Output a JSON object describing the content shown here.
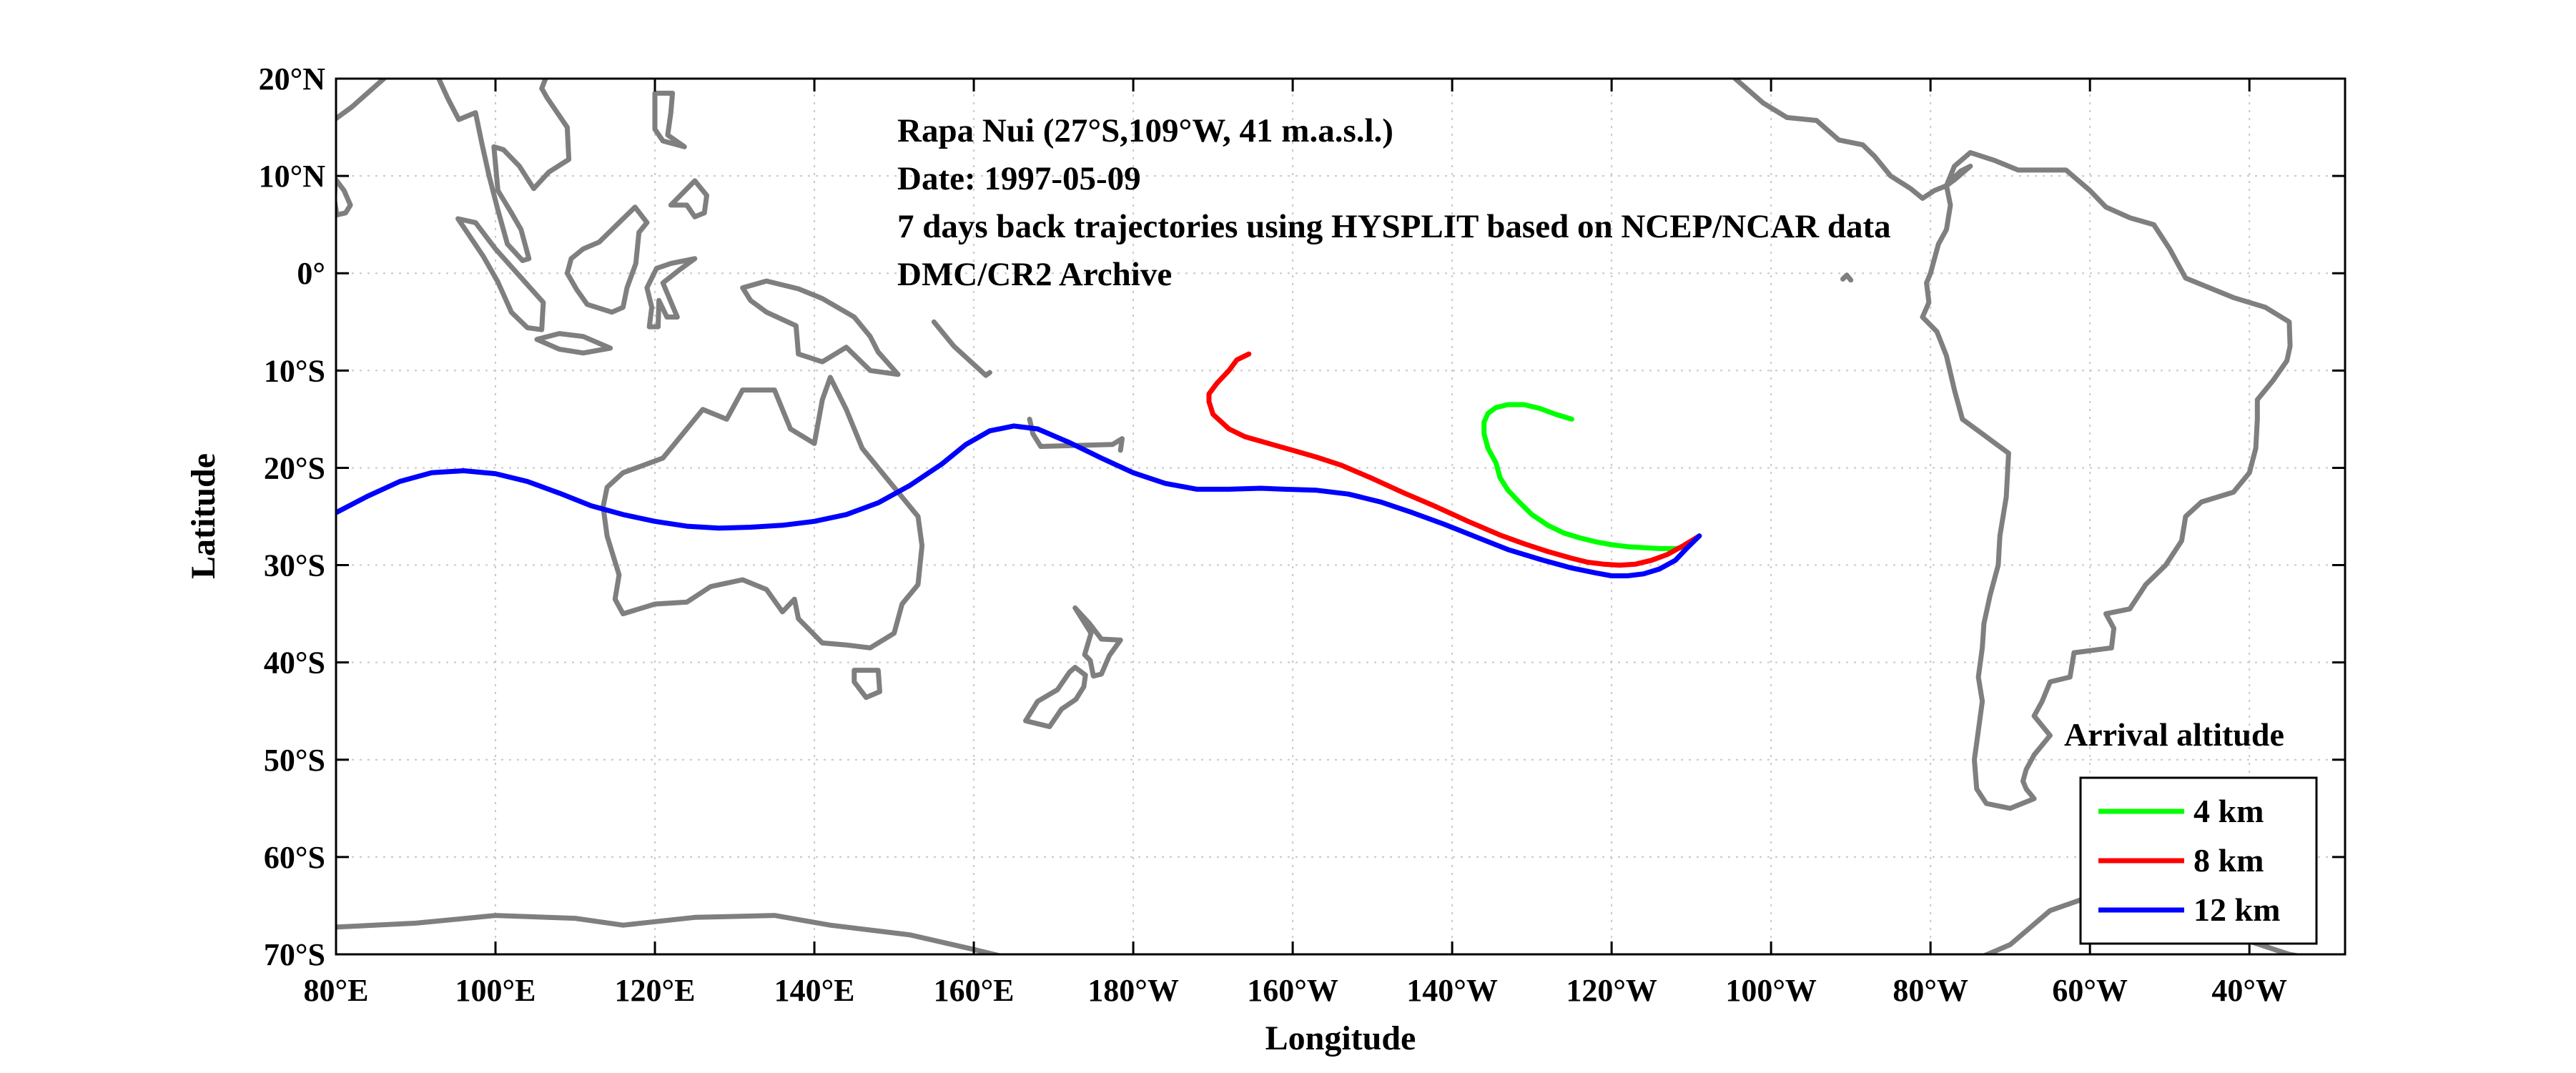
{
  "chart_data": {
    "type": "line",
    "title_lines": [
      "Rapa Nui (27°S,109°W, 41 m.a.s.l.)",
      "Date: 1997-05-09",
      "7 days back trajectories using HYSPLIT based on NCEP/NCAR data",
      "DMC/CR2 Archive"
    ],
    "xlabel": "Longitude",
    "ylabel": "Latitude",
    "xlim": [
      80,
      332
    ],
    "ylim": [
      -70,
      20
    ],
    "grid": true,
    "x_ticks": [
      {
        "value": 80,
        "label": "80°E"
      },
      {
        "value": 100,
        "label": "100°E"
      },
      {
        "value": 120,
        "label": "120°E"
      },
      {
        "value": 140,
        "label": "140°E"
      },
      {
        "value": 160,
        "label": "160°E"
      },
      {
        "value": 180,
        "label": "180°W"
      },
      {
        "value": 200,
        "label": "160°W"
      },
      {
        "value": 220,
        "label": "140°W"
      },
      {
        "value": 240,
        "label": "120°W"
      },
      {
        "value": 260,
        "label": "100°W"
      },
      {
        "value": 280,
        "label": "80°W"
      },
      {
        "value": 300,
        "label": "60°W"
      },
      {
        "value": 320,
        "label": "40°W"
      }
    ],
    "y_ticks": [
      {
        "value": 20,
        "label": "20°N"
      },
      {
        "value": 10,
        "label": "10°N"
      },
      {
        "value": 0,
        "label": "0°"
      },
      {
        "value": -10,
        "label": "10°S"
      },
      {
        "value": -20,
        "label": "20°S"
      },
      {
        "value": -30,
        "label": "30°S"
      },
      {
        "value": -40,
        "label": "40°S"
      },
      {
        "value": -50,
        "label": "50°S"
      },
      {
        "value": -60,
        "label": "60°S"
      },
      {
        "value": -70,
        "label": "70°S"
      }
    ],
    "legend": {
      "title": "Arrival altitude",
      "position": "bottom-right"
    },
    "series": [
      {
        "name": "4 km",
        "color": "#00ff00",
        "lon": [
          251,
          250,
          249.5,
          248,
          246,
          244,
          242,
          240,
          238,
          236,
          234,
          232,
          230,
          228.5,
          227,
          226,
          225.5,
          224.5,
          224,
          224,
          224.5,
          225.5,
          227,
          229,
          231,
          233,
          235
        ],
        "lat": [
          -27,
          -27.6,
          -28.1,
          -28.3,
          -28.3,
          -28.2,
          -28.1,
          -27.9,
          -27.6,
          -27.2,
          -26.7,
          -25.9,
          -24.8,
          -23.6,
          -22.3,
          -21,
          -19.5,
          -18,
          -16.5,
          -15.3,
          -14.4,
          -13.8,
          -13.5,
          -13.5,
          -13.9,
          -14.5,
          -15
        ]
      },
      {
        "name": "8 km",
        "color": "#ff0000",
        "lon": [
          251,
          249,
          247,
          245,
          243,
          241,
          239,
          237,
          235,
          232,
          229,
          226,
          222,
          218,
          214,
          210,
          206,
          203,
          200,
          197,
          194,
          192,
          190,
          189.5,
          189.5,
          190.5,
          192,
          193,
          194.5
        ],
        "lat": [
          -27,
          -28,
          -28.9,
          -29.5,
          -29.9,
          -30,
          -29.9,
          -29.7,
          -29.3,
          -28.6,
          -27.8,
          -26.9,
          -25.5,
          -24,
          -22.6,
          -21.1,
          -19.7,
          -18.9,
          -18.2,
          -17.5,
          -16.8,
          -16,
          -14.5,
          -13.2,
          -12.4,
          -11.3,
          -10,
          -8.9,
          -8.3
        ]
      },
      {
        "name": "12 km",
        "color": "#0000ff",
        "lon": [
          251,
          249.5,
          248,
          246,
          244,
          242,
          240,
          238,
          235,
          231,
          227,
          223,
          219,
          215,
          211,
          207,
          203,
          199,
          196,
          192,
          188,
          184,
          180,
          176,
          172,
          168,
          165,
          162,
          159,
          156,
          152,
          148,
          144,
          140,
          136,
          132,
          128,
          124,
          120,
          116,
          112,
          108,
          104,
          100,
          96,
          92,
          88,
          84,
          80
        ],
        "lat": [
          -27,
          -28.2,
          -29.5,
          -30.4,
          -30.9,
          -31.1,
          -31.1,
          -30.8,
          -30.3,
          -29.4,
          -28.4,
          -27.1,
          -25.8,
          -24.6,
          -23.5,
          -22.7,
          -22.3,
          -22.2,
          -22.1,
          -22.2,
          -22.2,
          -21.6,
          -20.5,
          -19,
          -17.4,
          -16,
          -15.7,
          -16.2,
          -17.6,
          -19.6,
          -21.8,
          -23.6,
          -24.8,
          -25.5,
          -25.9,
          -26.1,
          -26.2,
          -26,
          -25.5,
          -24.8,
          -23.9,
          -22.6,
          -21.4,
          -20.6,
          -20.3,
          -20.5,
          -21.4,
          -22.9,
          -24.6
        ]
      }
    ]
  }
}
